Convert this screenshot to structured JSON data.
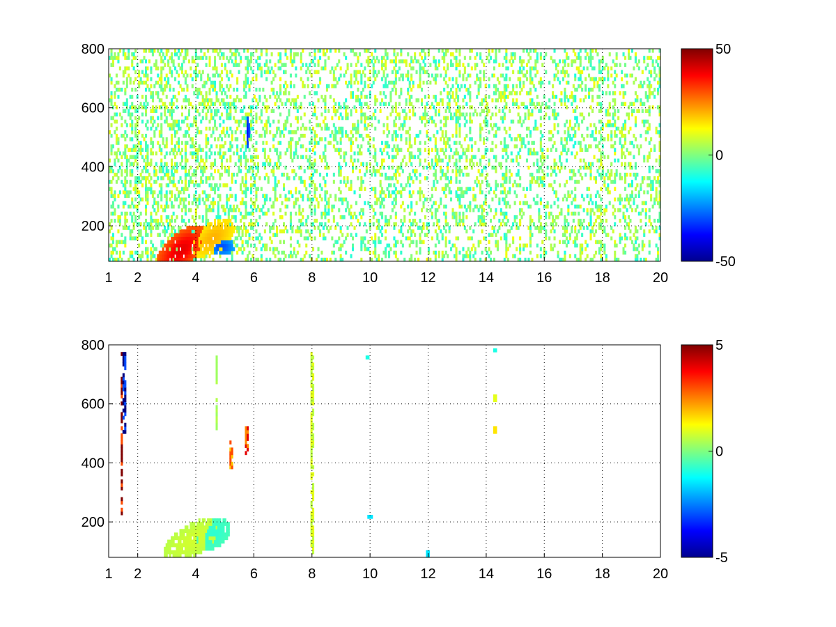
{
  "chart_data": [
    {
      "type": "heatmap",
      "title": "",
      "xlabel": "",
      "ylabel": "",
      "xlim": [
        1,
        20
      ],
      "ylim": [
        80,
        800
      ],
      "x_ticks": [
        1,
        2,
        4,
        6,
        8,
        10,
        12,
        14,
        16,
        18,
        20
      ],
      "y_ticks": [
        200,
        400,
        600,
        800
      ],
      "grid": true,
      "grid_style": "dotted",
      "colormap": "jet",
      "clim": [
        -50,
        50
      ],
      "colorbar_ticks": [
        50,
        0,
        -50
      ],
      "background_color": "#ffffff",
      "features": [
        {
          "kind": "blob",
          "x": 3.5,
          "y": 120,
          "sx": 0.6,
          "sy": 45,
          "value": 40,
          "tilt": 25
        },
        {
          "kind": "blob",
          "x": 4.6,
          "y": 160,
          "sx": 0.5,
          "sy": 40,
          "value": 20,
          "tilt": 20
        },
        {
          "kind": "blob",
          "x": 4.9,
          "y": 130,
          "sx": 0.3,
          "sy": 20,
          "value": -30,
          "tilt": 0
        },
        {
          "kind": "blob",
          "x": 5.8,
          "y": 520,
          "sx": 0.03,
          "sy": 40,
          "value": -40,
          "tilt": 0
        }
      ]
    },
    {
      "type": "heatmap",
      "title": "",
      "xlabel": "",
      "ylabel": "",
      "xlim": [
        1,
        20
      ],
      "ylim": [
        80,
        800
      ],
      "x_ticks": [
        1,
        2,
        4,
        6,
        8,
        10,
        12,
        14,
        16,
        18,
        20
      ],
      "y_ticks": [
        200,
        400,
        600,
        800
      ],
      "grid": true,
      "grid_style": "dotted",
      "colormap": "jet",
      "clim": [
        -5,
        5
      ],
      "colorbar_ticks": [
        5,
        0,
        -5
      ],
      "background_color": "#ffffff",
      "features": [
        {
          "kind": "blob",
          "x": 3.9,
          "y": 140,
          "sx": 0.7,
          "sy": 40,
          "value": 0.8,
          "tilt": 20
        },
        {
          "kind": "blob",
          "x": 4.6,
          "y": 160,
          "sx": 0.4,
          "sy": 35,
          "value": -0.8,
          "tilt": 15
        },
        {
          "kind": "stripe",
          "x": 1.45,
          "y0": 220,
          "y1": 780,
          "value": 5
        },
        {
          "kind": "stripe",
          "x": 1.55,
          "y0": 500,
          "y1": 780,
          "value": -5
        },
        {
          "kind": "stripe",
          "x": 4.7,
          "y0": 480,
          "y1": 770,
          "value": 0.5
        },
        {
          "kind": "stripe",
          "x": 5.2,
          "y0": 370,
          "y1": 480,
          "value": 3
        },
        {
          "kind": "stripe",
          "x": 5.75,
          "y0": 430,
          "y1": 520,
          "value": 4
        },
        {
          "kind": "stripe",
          "x": 8.0,
          "y0": 80,
          "y1": 780,
          "value": 1
        },
        {
          "kind": "spot",
          "x": 9.9,
          "y": 760,
          "value": -1
        },
        {
          "kind": "spot",
          "x": 14.3,
          "y": 780,
          "value": -1
        },
        {
          "kind": "spot",
          "x": 14.3,
          "y": 620,
          "value": 1
        },
        {
          "kind": "spot",
          "x": 14.3,
          "y": 510,
          "value": 1.5
        },
        {
          "kind": "spot",
          "x": 12.0,
          "y": 90,
          "value": -1.5
        },
        {
          "kind": "spot",
          "x": 10.0,
          "y": 220,
          "value": -1.5
        }
      ]
    }
  ]
}
